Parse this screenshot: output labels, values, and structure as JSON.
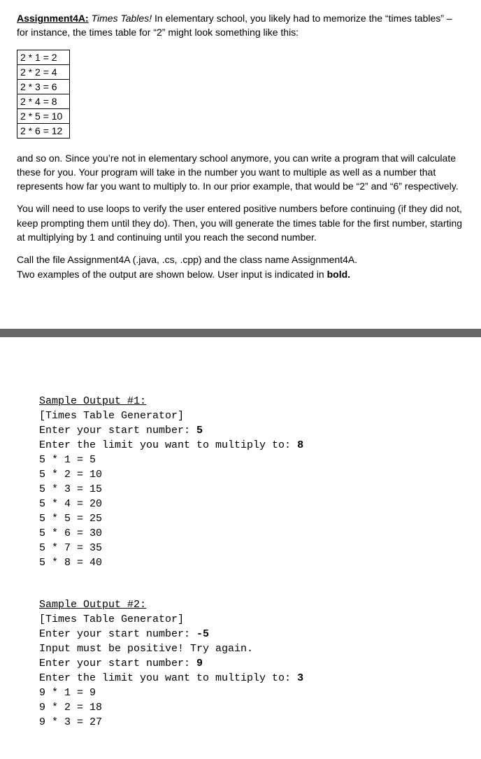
{
  "assignment": {
    "label": "Assignment4A:",
    "subtitle": "Times Tables!",
    "intro": "In elementary school, you likely had to memorize the “times tables” – for instance, the times table for “2” might look something like this:"
  },
  "times_rows": [
    "2 * 1 = 2",
    "2 * 2 = 4",
    "2 * 3 = 6",
    "2 * 4 = 8",
    "2 * 5 = 10",
    "2 * 6 = 12"
  ],
  "para1": "and so on. Since you’re not in elementary school anymore, you can write a program that will calculate these for you. Your program will take in the number you want to multiple as well as a number that represents how far you want to multiply to. In our prior example, that would be “2” and “6” respectively.",
  "para2": "You will need to use loops to verify the user entered positive numbers before continuing (if they did not, keep prompting them until they do). Then, you will generate the times table for the first number, starting at multiplying by 1 and continuing until you reach the second number.",
  "para3a": "Call the file Assignment4A (.java, .cs, .cpp) and the class name Assignment4A.",
  "para3b_pre": "Two examples of the output are shown below. User input is indicated in ",
  "para3b_bold": "bold.",
  "sample1": {
    "head": "Sample Output #1:",
    "lines_pre": [
      "[Times Table Generator]"
    ],
    "prompt1": "Enter your start number: ",
    "input1": "5",
    "prompt2": "Enter the limit you want to multiply to: ",
    "input2": "8",
    "results": [
      "5 * 1 = 5",
      "5 * 2 = 10",
      "5 * 3 = 15",
      "5 * 4 = 20",
      "5 * 5 = 25",
      "5 * 6 = 30",
      "5 * 7 = 35",
      "5 * 8 = 40"
    ]
  },
  "sample2": {
    "head": "Sample Output #2:",
    "lines_pre": [
      "[Times Table Generator]"
    ],
    "prompt1": "Enter your start number: ",
    "input1": "-5",
    "err": "Input must be positive! Try again.",
    "prompt1b": "Enter your start number: ",
    "input1b": "9",
    "prompt2": "Enter the limit you want to multiply to: ",
    "input2": "3",
    "results": [
      "9 * 1 = 9",
      "9 * 2 = 18",
      "9 * 3 = 27"
    ]
  }
}
